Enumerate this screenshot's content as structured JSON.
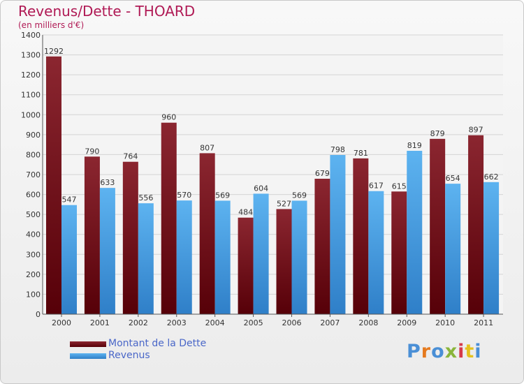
{
  "title": "Revenus/Dette - THOARD",
  "subtitle": "(en milliers d'€)",
  "logo_text": "Proxiti",
  "logo_colors": [
    "#4a8fd6",
    "#e57a1f",
    "#4a8fd6",
    "#8ab53b",
    "#d63a4a",
    "#e5c21f",
    "#4a8fd6"
  ],
  "legend": [
    {
      "label": "Montant de la Dette",
      "color": "#6b0a14"
    },
    {
      "label": "Revenus",
      "color": "#3c9be0"
    }
  ],
  "chart_data": {
    "type": "bar",
    "title": "Revenus/Dette - THOARD",
    "subtitle": "(en milliers d'€)",
    "categories": [
      "2000",
      "2001",
      "2002",
      "2003",
      "2004",
      "2005",
      "2006",
      "2007",
      "2008",
      "2009",
      "2010",
      "2011"
    ],
    "series": [
      {
        "name": "Montant de la Dette",
        "color": "#6b0a14",
        "values": [
          1292,
          790,
          764,
          960,
          807,
          484,
          527,
          679,
          781,
          615,
          879,
          897
        ]
      },
      {
        "name": "Revenus",
        "color": "#3c9be0",
        "values": [
          547,
          633,
          556,
          570,
          569,
          604,
          569,
          798,
          617,
          819,
          654,
          662
        ]
      }
    ],
    "yticks": [
      0,
      100,
      200,
      300,
      400,
      500,
      600,
      700,
      800,
      900,
      1000,
      1100,
      1200,
      1300,
      1400
    ],
    "ylim": [
      0,
      1400
    ],
    "grid": true,
    "legend_position": "bottom-left"
  }
}
